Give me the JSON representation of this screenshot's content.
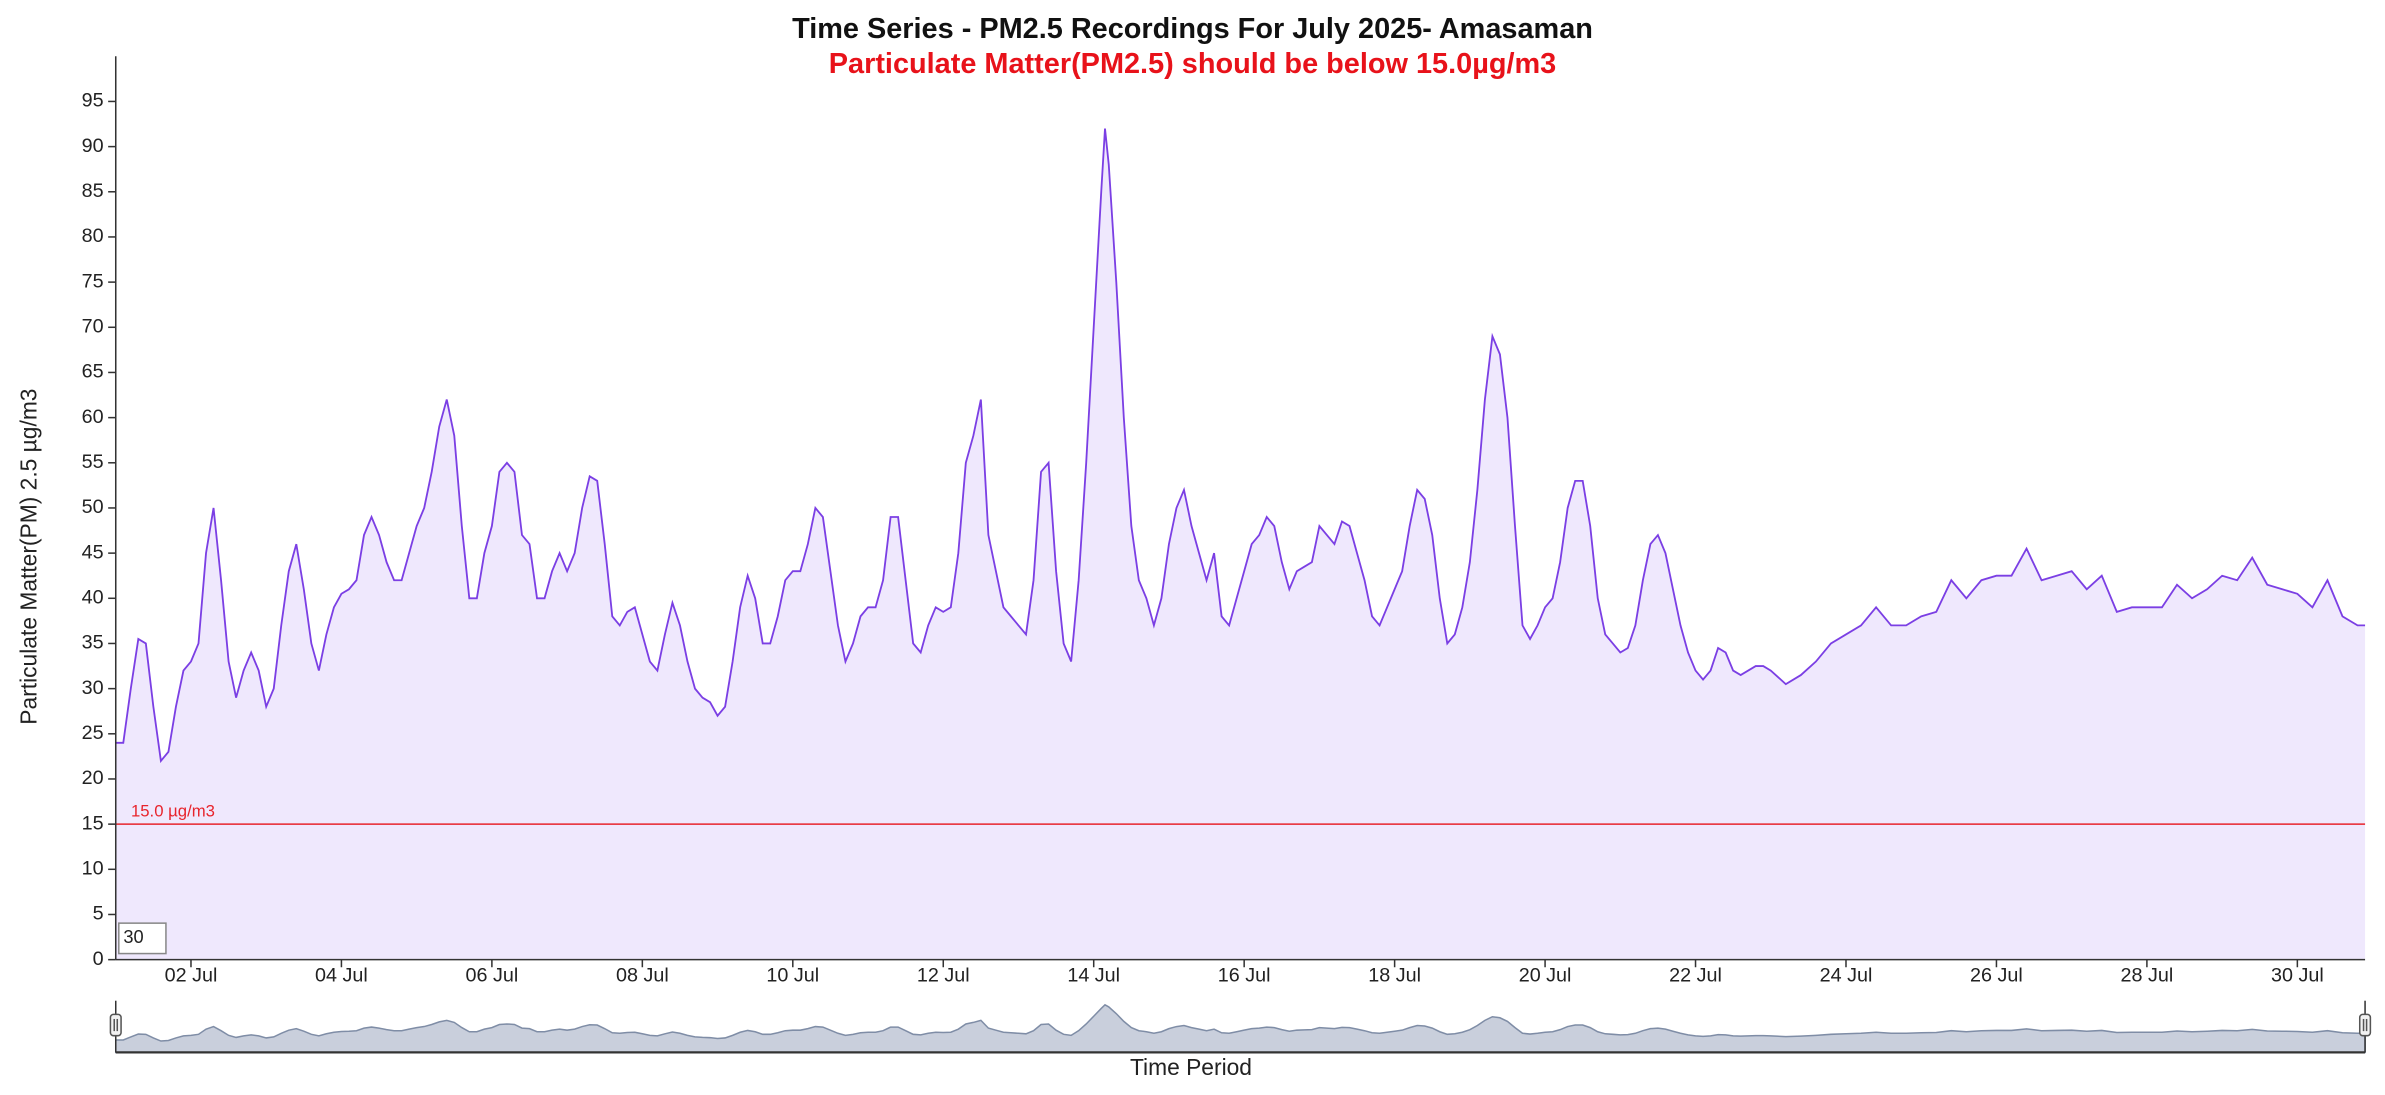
{
  "chart_data": {
    "type": "area",
    "title": "Time Series - PM2.5 Recordings For July 2025- Amasaman",
    "subtitle": "Particulate Matter(PM2.5) should be below 15.0µg/m3",
    "y_label": "Particulate Matter(PM) 2.5 µg/m3",
    "x_label": "Time Period",
    "color": "#7b3fe4",
    "fill": "#efe8fd",
    "threshold": {
      "value": 15,
      "label": "15.0 µg/m3",
      "color": "#e8242c"
    },
    "zoom_input": 30,
    "xlim": [
      1,
      30.9
    ],
    "ylim": [
      0,
      100
    ],
    "yticks": [
      0,
      5,
      10,
      15,
      20,
      25,
      30,
      35,
      40,
      45,
      50,
      55,
      60,
      65,
      70,
      75,
      80,
      85,
      90,
      95
    ],
    "xticks": [
      {
        "value": 2,
        "label": "02 Jul"
      },
      {
        "value": 4,
        "label": "04 Jul"
      },
      {
        "value": 6,
        "label": "06 Jul"
      },
      {
        "value": 8,
        "label": "08 Jul"
      },
      {
        "value": 10,
        "label": "10 Jul"
      },
      {
        "value": 12,
        "label": "12 Jul"
      },
      {
        "value": 14,
        "label": "14 Jul"
      },
      {
        "value": 16,
        "label": "16 Jul"
      },
      {
        "value": 18,
        "label": "18 Jul"
      },
      {
        "value": 20,
        "label": "20 Jul"
      },
      {
        "value": 22,
        "label": "22 Jul"
      },
      {
        "value": 24,
        "label": "24 Jul"
      },
      {
        "value": 26,
        "label": "26 Jul"
      },
      {
        "value": 28,
        "label": "28 Jul"
      },
      {
        "value": 30,
        "label": "30 Jul"
      }
    ],
    "x": [
      1.0,
      1.1,
      1.2,
      1.3,
      1.4,
      1.5,
      1.6,
      1.7,
      1.8,
      1.9,
      2.0,
      2.1,
      2.2,
      2.3,
      2.4,
      2.5,
      2.6,
      2.7,
      2.8,
      2.9,
      3.0,
      3.1,
      3.2,
      3.3,
      3.4,
      3.5,
      3.6,
      3.7,
      3.8,
      3.9,
      4.0,
      4.1,
      4.2,
      4.3,
      4.4,
      4.5,
      4.6,
      4.7,
      4.8,
      4.9,
      5.0,
      5.1,
      5.2,
      5.3,
      5.4,
      5.5,
      5.6,
      5.7,
      5.8,
      5.9,
      6.0,
      6.1,
      6.2,
      6.3,
      6.4,
      6.5,
      6.6,
      6.7,
      6.8,
      6.9,
      7.0,
      7.1,
      7.2,
      7.3,
      7.4,
      7.5,
      7.6,
      7.7,
      7.8,
      7.9,
      8.0,
      8.1,
      8.2,
      8.3,
      8.4,
      8.5,
      8.6,
      8.7,
      8.8,
      8.9,
      9.0,
      9.1,
      9.2,
      9.3,
      9.4,
      9.5,
      9.6,
      9.7,
      9.8,
      9.9,
      10.0,
      10.1,
      10.2,
      10.3,
      10.4,
      10.5,
      10.6,
      10.7,
      10.8,
      10.9,
      11.0,
      11.1,
      11.2,
      11.3,
      11.4,
      11.5,
      11.6,
      11.7,
      11.8,
      11.9,
      12.0,
      12.1,
      12.2,
      12.3,
      12.4,
      12.5,
      12.6,
      12.7,
      12.8,
      12.9,
      13.0,
      13.1,
      13.2,
      13.3,
      13.4,
      13.5,
      13.6,
      13.7,
      13.8,
      13.9,
      14.0,
      14.1,
      14.15,
      14.2,
      14.3,
      14.4,
      14.5,
      14.6,
      14.7,
      14.8,
      14.9,
      15.0,
      15.1,
      15.2,
      15.3,
      15.4,
      15.5,
      15.6,
      15.7,
      15.8,
      15.9,
      16.0,
      16.1,
      16.2,
      16.3,
      16.4,
      16.5,
      16.6,
      16.7,
      16.8,
      16.9,
      17.0,
      17.1,
      17.2,
      17.3,
      17.4,
      17.5,
      17.6,
      17.7,
      17.8,
      17.9,
      18.0,
      18.1,
      18.2,
      18.3,
      18.4,
      18.5,
      18.6,
      18.7,
      18.8,
      18.9,
      19.0,
      19.1,
      19.2,
      19.3,
      19.4,
      19.5,
      19.6,
      19.7,
      19.8,
      19.9,
      20.0,
      20.1,
      20.2,
      20.3,
      20.4,
      20.5,
      20.6,
      20.7,
      20.8,
      20.9,
      21.0,
      21.1,
      21.2,
      21.3,
      21.4,
      21.5,
      21.6,
      21.7,
      21.8,
      21.9,
      22.0,
      22.1,
      22.2,
      22.3,
      22.4,
      22.5,
      22.6,
      22.7,
      22.8,
      22.9,
      23.0,
      23.2,
      23.4,
      23.6,
      23.8,
      24.0,
      24.2,
      24.4,
      24.6,
      24.8,
      25.0,
      25.2,
      25.4,
      25.6,
      25.8,
      26.0,
      26.2,
      26.4,
      26.6,
      26.8,
      27.0,
      27.2,
      27.4,
      27.6,
      27.8,
      28.0,
      28.2,
      28.4,
      28.6,
      28.8,
      29.0,
      29.2,
      29.4,
      29.6,
      29.8,
      30.0,
      30.2,
      30.4,
      30.6,
      30.8,
      30.9
    ],
    "values": [
      24,
      24,
      30,
      35.5,
      35,
      28,
      22,
      23,
      28,
      32,
      33,
      35,
      45,
      50,
      42,
      33,
      29,
      32,
      34,
      32,
      28,
      30,
      37,
      43,
      46,
      41,
      35,
      32,
      36,
      39,
      40.5,
      41,
      42,
      47,
      49,
      47,
      44,
      42,
      42,
      45,
      48,
      50,
      54,
      59,
      62,
      58,
      48,
      40,
      40,
      45,
      48,
      54,
      55,
      54,
      47,
      46,
      40,
      40,
      43,
      45,
      43,
      45,
      50,
      53.5,
      53,
      46,
      38,
      37,
      38.5,
      39,
      36,
      33,
      32,
      36,
      39.5,
      37,
      33,
      30,
      29,
      28.5,
      27,
      28,
      33,
      39,
      42.5,
      40,
      35,
      35,
      38,
      42,
      43,
      43,
      46,
      50,
      49,
      43,
      37,
      33,
      35,
      38,
      39,
      39,
      42,
      49,
      49,
      42,
      35,
      34,
      37,
      39,
      38.5,
      39,
      45,
      55,
      58,
      62,
      47,
      43,
      39,
      38,
      37,
      36,
      42,
      54,
      55,
      43,
      35,
      33,
      42,
      55,
      70,
      85,
      92,
      88,
      75,
      60,
      48,
      42,
      40,
      37,
      40,
      46,
      50,
      52,
      48,
      45,
      42,
      45,
      38,
      37,
      40,
      43,
      46,
      47,
      49,
      48,
      44,
      41,
      43,
      43.5,
      44,
      48,
      47,
      46,
      48.5,
      48,
      45,
      42,
      38,
      37,
      39,
      41,
      43,
      48,
      52,
      51,
      47,
      40,
      35,
      36,
      39,
      44,
      52,
      62,
      69,
      67,
      60,
      48,
      37,
      35.5,
      37,
      39,
      40,
      44,
      50,
      53,
      53,
      48,
      40,
      36,
      35,
      34,
      34.5,
      37,
      42,
      46,
      47,
      45,
      41,
      37,
      34,
      32,
      31,
      32,
      34.5,
      34,
      32,
      31.5,
      32,
      32.5,
      32.5,
      32,
      30.5,
      31.5,
      33,
      35,
      36,
      37,
      39,
      37,
      37,
      38,
      38.5,
      42,
      40,
      42,
      42.5,
      42.5,
      45.5,
      42,
      42.5,
      43,
      41,
      42.5,
      38.5,
      39,
      39,
      39,
      41.5,
      40,
      41,
      42.5,
      42,
      44.5,
      41.5,
      41,
      40.5,
      39,
      42,
      38,
      37,
      37
    ]
  }
}
